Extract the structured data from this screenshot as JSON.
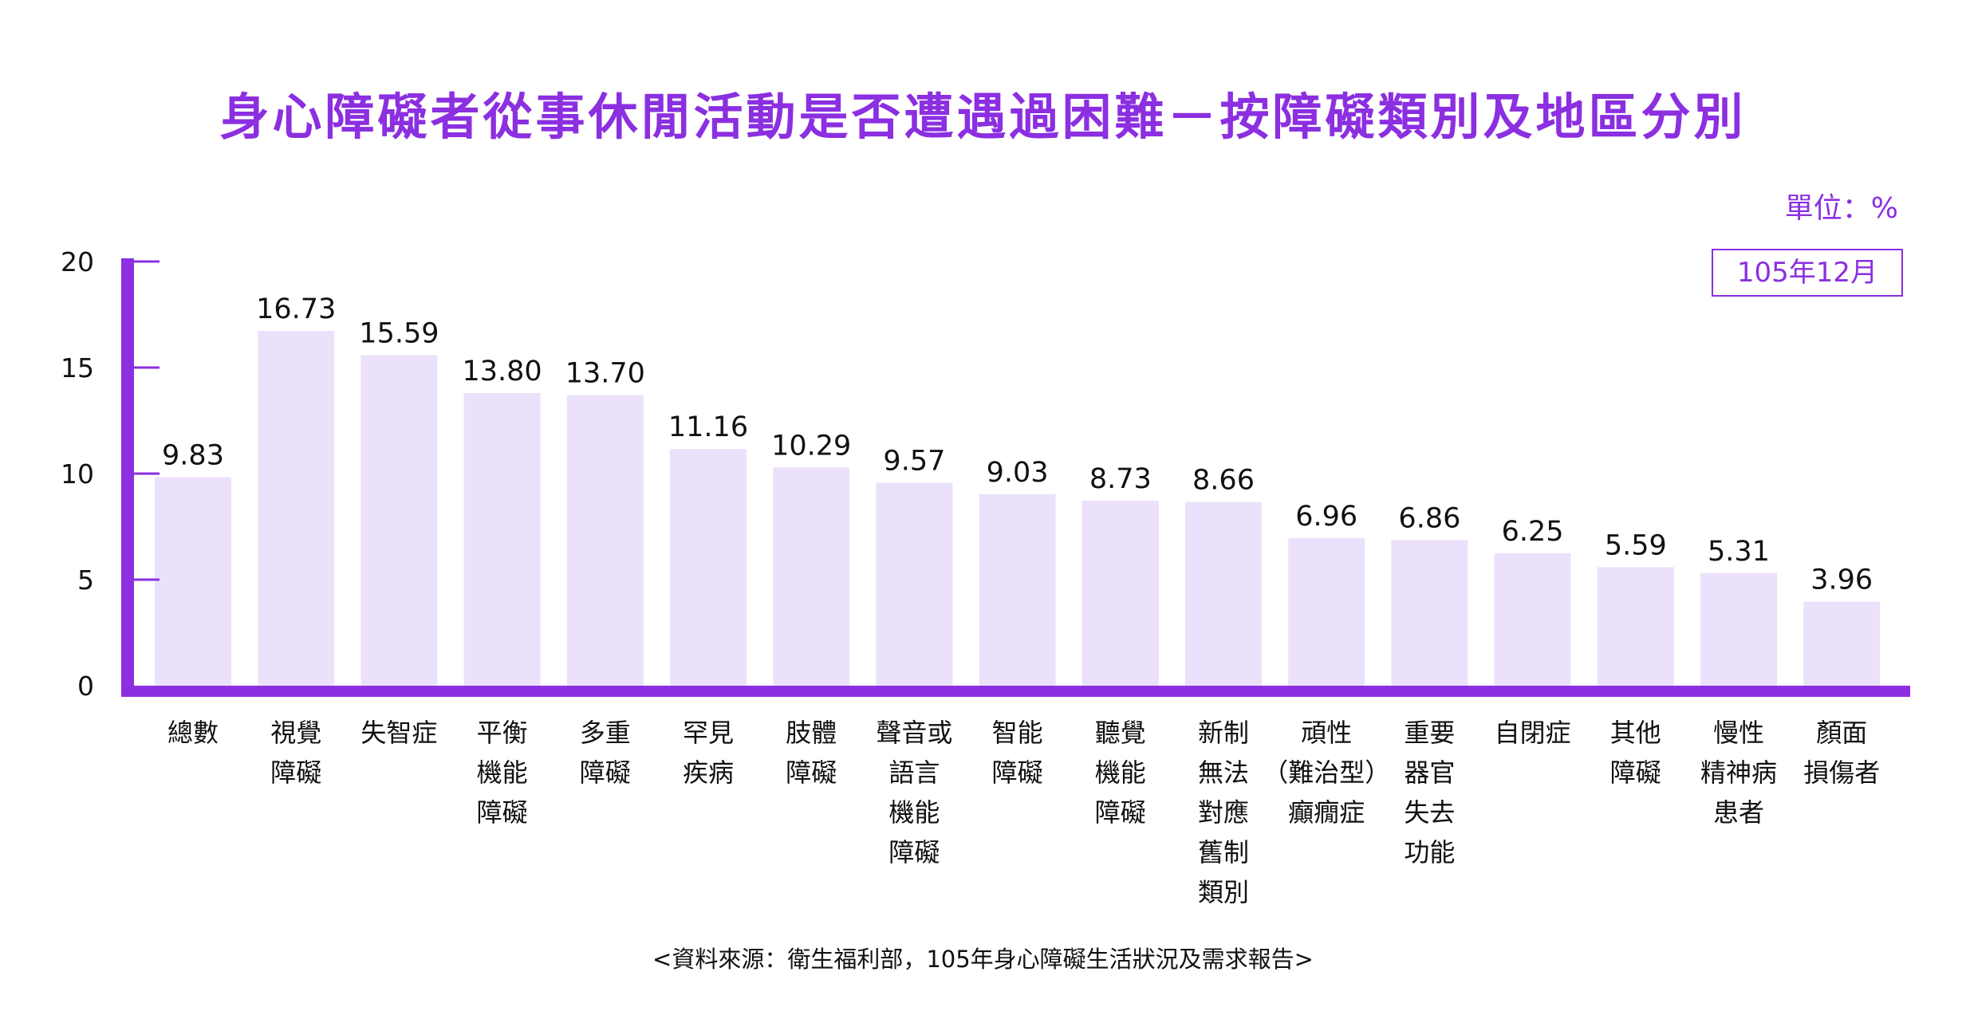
{
  "title": "身心障礙者從事休閒活動是否遭遇過困難－按障礙類別及地區分別",
  "unit_label": "單位：%",
  "period": "105年12月",
  "source": "<資料來源：衛生福利部，105年身心障礙生活狀況及需求報告>",
  "colors": {
    "accent": "#8b2fe0",
    "bar": "#ece1fb",
    "axis": "#8b2fe0"
  },
  "chart_data": {
    "type": "bar",
    "categories": [
      [
        "總數"
      ],
      [
        "視覺",
        "障礙"
      ],
      [
        "失智症"
      ],
      [
        "平衡",
        "機能",
        "障礙"
      ],
      [
        "多重",
        "障礙"
      ],
      [
        "罕見",
        "疾病"
      ],
      [
        "肢體",
        "障礙"
      ],
      [
        "聲音或",
        "語言",
        "機能",
        "障礙"
      ],
      [
        "智能",
        "障礙"
      ],
      [
        "聽覺",
        "機能",
        "障礙"
      ],
      [
        "新制",
        "無法",
        "對應",
        "舊制",
        "類別"
      ],
      [
        "頑性",
        "（難治型）",
        "癲癇症"
      ],
      [
        "重要",
        "器官",
        "失去",
        "功能"
      ],
      [
        "自閉症"
      ],
      [
        "其他",
        "障礙"
      ],
      [
        "慢性",
        "精神病",
        "患者"
      ],
      [
        "顏面",
        "損傷者"
      ]
    ],
    "values": [
      9.83,
      16.73,
      15.59,
      13.8,
      13.7,
      11.16,
      10.29,
      9.57,
      9.03,
      8.73,
      8.66,
      6.96,
      6.86,
      6.25,
      5.59,
      5.31,
      3.96
    ],
    "value_labels": [
      "9.83",
      "16.73",
      "15.59",
      "13.80",
      "13.70",
      "11.16",
      "10.29",
      "9.57",
      "9.03",
      "8.73",
      "8.66",
      "6.96",
      "6.86",
      "6.25",
      "5.59",
      "5.31",
      "3.96"
    ],
    "yticks": [
      0,
      5,
      10,
      15,
      20
    ],
    "ylim": [
      0,
      20
    ],
    "grid": false,
    "legend": "none"
  }
}
